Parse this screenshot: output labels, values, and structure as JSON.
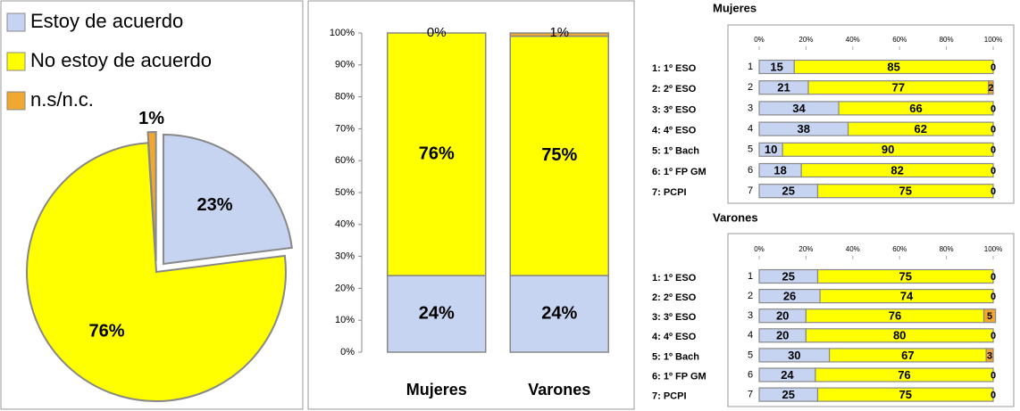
{
  "chart_data": [
    {
      "type": "pie",
      "labels": [
        "Estoy de acuerdo",
        "No estoy de acuerdo",
        "n.s/n.c."
      ],
      "values": [
        23,
        76,
        1
      ],
      "value_labels": [
        "23%",
        "76%",
        "1%"
      ],
      "colors": [
        "#c6d4f2",
        "#ffff00",
        "#f0a830"
      ],
      "exploded": [
        true,
        false,
        true
      ],
      "legend": "upper left"
    },
    {
      "type": "stacked_bar",
      "categories": [
        "Mujeres",
        "Varones"
      ],
      "series": [
        {
          "color": "#c6d4f2",
          "values": [
            24,
            24
          ],
          "value_labels": [
            "24%",
            "24%"
          ]
        },
        {
          "color": "#ffff00",
          "values": [
            76,
            75
          ],
          "value_labels": [
            "76%",
            "75%"
          ]
        },
        {
          "color": "#f0a830",
          "values": [
            0,
            1
          ],
          "value_labels": [
            "0%",
            "1%"
          ]
        }
      ],
      "ylim": [
        0,
        100
      ],
      "yticks": [
        {
          "value": 0,
          "label": "0%"
        },
        {
          "value": 10,
          "label": "10%"
        },
        {
          "value": 20,
          "label": "20%"
        },
        {
          "value": 30,
          "label": "30%"
        },
        {
          "value": 40,
          "label": "40%"
        },
        {
          "value": 50,
          "label": "50%"
        },
        {
          "value": 60,
          "label": "60%"
        },
        {
          "value": 70,
          "label": "70%"
        },
        {
          "value": 80,
          "label": "80%"
        },
        {
          "value": 90,
          "label": "90%"
        },
        {
          "value": 100,
          "label": "100%"
        }
      ]
    },
    {
      "type": "stacked_hbar",
      "title": "Mujeres",
      "categories": [
        "1",
        "2",
        "3",
        "4",
        "5",
        "6",
        "7"
      ],
      "category_names": [
        "1: 1º ESO",
        "2: 2º ESO",
        "3: 3º ESO",
        "4: 4º ESO",
        "5: 1º Bach",
        "6: 1º FP GM",
        "7: PCPI"
      ],
      "series": [
        {
          "color": "#c6d4f2",
          "values": [
            15,
            21,
            34,
            38,
            10,
            18,
            25
          ]
        },
        {
          "color": "#ffff00",
          "values": [
            85,
            77,
            66,
            62,
            90,
            82,
            75
          ]
        },
        {
          "color": "#f0a830",
          "values": [
            0,
            2,
            0,
            0,
            0,
            0,
            0
          ]
        }
      ],
      "xlim": [
        0,
        100
      ],
      "xticks": [
        {
          "value": 0,
          "label": "0%"
        },
        {
          "value": 20,
          "label": "20%"
        },
        {
          "value": 40,
          "label": "40%"
        },
        {
          "value": 60,
          "label": "60%"
        },
        {
          "value": 80,
          "label": "80%"
        },
        {
          "value": 100,
          "label": "100%"
        }
      ]
    },
    {
      "type": "stacked_hbar",
      "title": "Varones",
      "categories": [
        "1",
        "2",
        "3",
        "4",
        "5",
        "6",
        "7"
      ],
      "category_names": [
        "1: 1º ESO",
        "2: 2º ESO",
        "3: 3º ESO",
        "4: 4º ESO",
        "5: 1º Bach",
        "6: 1º FP GM",
        "7: PCPI"
      ],
      "series": [
        {
          "color": "#c6d4f2",
          "values": [
            25,
            26,
            20,
            20,
            30,
            24,
            25
          ]
        },
        {
          "color": "#ffff00",
          "values": [
            75,
            74,
            76,
            80,
            67,
            76,
            75
          ]
        },
        {
          "color": "#f0a830",
          "values": [
            0,
            0,
            5,
            0,
            3,
            0,
            0
          ]
        }
      ],
      "xlim": [
        0,
        100
      ],
      "xticks": [
        {
          "value": 0,
          "label": "0%"
        },
        {
          "value": 20,
          "label": "20%"
        },
        {
          "value": 40,
          "label": "40%"
        },
        {
          "value": 60,
          "label": "60%"
        },
        {
          "value": 80,
          "label": "80%"
        },
        {
          "value": 100,
          "label": "100%"
        }
      ]
    }
  ]
}
